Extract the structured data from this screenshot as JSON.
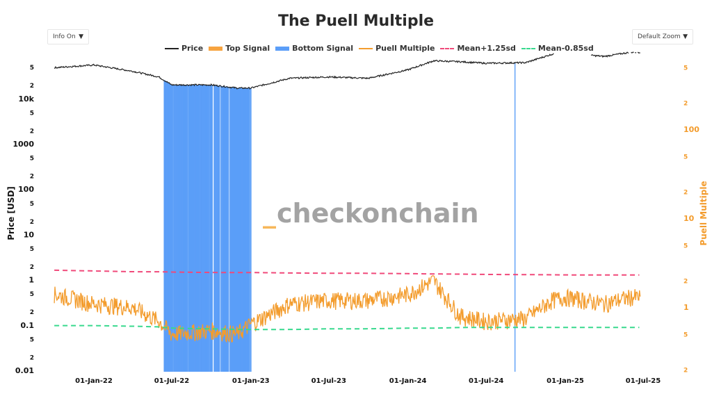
{
  "title": "The Puell Multiple",
  "controls": {
    "info_dropdown": "Info On",
    "zoom_dropdown": "Default Zoom"
  },
  "watermark": {
    "prefix": "_",
    "text": "checkonchain"
  },
  "legend": [
    {
      "label": "Price",
      "color": "#222222",
      "style": "line"
    },
    {
      "label": "Top Signal",
      "color": "#f7a440",
      "style": "bar"
    },
    {
      "label": "Bottom Signal",
      "color": "#5b9ef8",
      "style": "bar"
    },
    {
      "label": "Puell Multiple",
      "color": "#f39c2d",
      "style": "line"
    },
    {
      "label": "Mean+1.25sd",
      "color": "#f0497a",
      "style": "dash"
    },
    {
      "label": "Mean-0.85sd",
      "color": "#38d98e",
      "style": "dash"
    }
  ],
  "axes": {
    "y_left_title": "Price [USD]",
    "y_right_title": "Puell Multiple",
    "y_left_ticks": [
      "5",
      "2",
      "10k",
      "5",
      "2",
      "1000",
      "5",
      "2",
      "100",
      "5",
      "2",
      "10",
      "5",
      "2",
      "1",
      "5",
      "2",
      "0.1",
      "5",
      "2",
      "0.01"
    ],
    "y_right_ticks": [
      "5",
      "2",
      "100",
      "5",
      "2",
      "10",
      "5",
      "2",
      "1",
      "5",
      "2"
    ],
    "x_ticks": [
      "01-Jan-22",
      "01-Jul-22",
      "01-Jan-23",
      "01-Jul-23",
      "01-Jan-24",
      "01-Jul-24",
      "01-Jan-25",
      "01-Jul-25"
    ]
  },
  "chart_data": {
    "type": "line",
    "title": "The Puell Multiple",
    "xlabel": "",
    "ylabel": "Price [USD]",
    "y2label": "Puell Multiple",
    "y_scale": "log",
    "y2_scale": "log",
    "ylim": [
      0.01,
      100000
    ],
    "y2lim": [
      0.2,
      800
    ],
    "x_range": [
      "2021-10-01",
      "2025-07-01"
    ],
    "legend_position": "top",
    "grid": false,
    "x": [
      "2021-10",
      "2022-01",
      "2022-04",
      "2022-06",
      "2022-07",
      "2022-10",
      "2022-12",
      "2023-01",
      "2023-04",
      "2023-07",
      "2023-10",
      "2024-01",
      "2024-03",
      "2024-05",
      "2024-07",
      "2024-10",
      "2024-12",
      "2025-01",
      "2025-04",
      "2025-06"
    ],
    "series": [
      {
        "name": "Price",
        "axis": "left",
        "values": [
          48000,
          55000,
          40000,
          30000,
          20000,
          20000,
          17000,
          17000,
          28000,
          30000,
          28000,
          43000,
          68000,
          65000,
          60000,
          62000,
          95000,
          100000,
          85000,
          105000
        ]
      },
      {
        "name": "Puell Multiple",
        "axis": "right",
        "values": [
          1.4,
          1.1,
          1.0,
          0.7,
          0.5,
          0.55,
          0.5,
          0.65,
          1.1,
          1.2,
          1.2,
          1.4,
          2.0,
          0.8,
          0.7,
          0.75,
          1.2,
          1.3,
          1.1,
          1.3
        ]
      },
      {
        "name": "Mean+1.25sd",
        "axis": "right",
        "values": [
          2.6,
          2.55,
          2.5,
          2.5,
          2.48,
          2.45,
          2.45,
          2.45,
          2.42,
          2.4,
          2.4,
          2.38,
          2.36,
          2.35,
          2.33,
          2.32,
          2.31,
          2.3,
          2.3,
          2.3
        ]
      },
      {
        "name": "Mean-0.85sd",
        "axis": "right",
        "values": [
          0.62,
          0.62,
          0.61,
          0.6,
          0.58,
          0.57,
          0.56,
          0.56,
          0.56,
          0.57,
          0.57,
          0.58,
          0.58,
          0.59,
          0.59,
          0.59,
          0.59,
          0.59,
          0.59,
          0.59
        ]
      }
    ],
    "bottom_signal_periods": [
      [
        "2022-06-13",
        "2022-12-31"
      ],
      [
        "2024-09-06",
        "2024-09-07"
      ]
    ],
    "top_signal_periods": []
  }
}
